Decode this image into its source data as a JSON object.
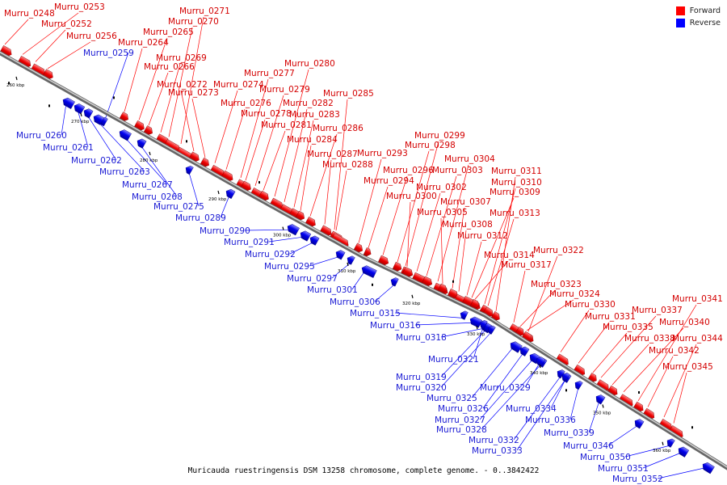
{
  "legend": [
    {
      "label": "Forward",
      "color": "#ff0000"
    },
    {
      "label": "Reverse",
      "color": "#0000ff"
    }
  ],
  "caption": "Muricauda ruestringensis DSM 13258 chromosome, complete genome. - 0..3842422",
  "ticks": [
    "260 kbp",
    "270 kbp",
    "280 kbp",
    "290 kbp",
    "300 kbp",
    "310 kbp",
    "320 kbp",
    "330 kbp",
    "340 kbp",
    "350 kbp",
    "360 kbp"
  ],
  "forward_genes": [
    "Murru_0248",
    "Murru_0253",
    "Murru_0252",
    "Murru_0256",
    "Murru_0264",
    "Murru_0265",
    "Murru_0266",
    "Murru_0269",
    "Murru_0270",
    "Murru_0271",
    "Murru_0272",
    "Murru_0273",
    "Murru_0274",
    "Murru_0276",
    "Murru_0277",
    "Murru_0278",
    "Murru_0279",
    "Murru_0280",
    "Murru_0281",
    "Murru_0282",
    "Murru_0283",
    "Murru_0284",
    "Murru_0285",
    "Murru_0286",
    "Murru_0287",
    "Murru_0288",
    "Murru_0293",
    "Murru_0294",
    "Murru_0296",
    "Murru_0298",
    "Murru_0299",
    "Murru_0300",
    "Murru_0302",
    "Murru_0303",
    "Murru_0304",
    "Murru_0305",
    "Murru_0307",
    "Murru_0308",
    "Murru_0309",
    "Murru_0310",
    "Murru_0311",
    "Murru_0312",
    "Murru_0313",
    "Murru_0314",
    "Murru_0317",
    "Murru_0322",
    "Murru_0323",
    "Murru_0324",
    "Murru_0330",
    "Murru_0331",
    "Murru_0335",
    "Murru_0337",
    "Murru_0338",
    "Murru_0340",
    "Murru_0341",
    "Murru_0342",
    "Murru_0344",
    "Murru_0345"
  ],
  "reverse_genes": [
    "Murru_0259",
    "Murru_0260",
    "Murru_0261",
    "Murru_0262",
    "Murru_0263",
    "Murru_0267",
    "Murru_0268",
    "Murru_0275",
    "Murru_0289",
    "Murru_0290",
    "Murru_0291",
    "Murru_0292",
    "Murru_0295",
    "Murru_0297",
    "Murru_0301",
    "Murru_0306",
    "Murru_0315",
    "Murru_0316",
    "Murru_0318",
    "Murru_0319",
    "Murru_0320",
    "Murru_0321",
    "Murru_0325",
    "Murru_0326",
    "Murru_0327",
    "Murru_0328",
    "Murru_0329",
    "Murru_0332",
    "Murru_0333",
    "Murru_0334",
    "Murru_0336",
    "Murru_0339",
    "Murru_0346",
    "Murru_0350",
    "Murru_0351",
    "Murru_0352"
  ]
}
